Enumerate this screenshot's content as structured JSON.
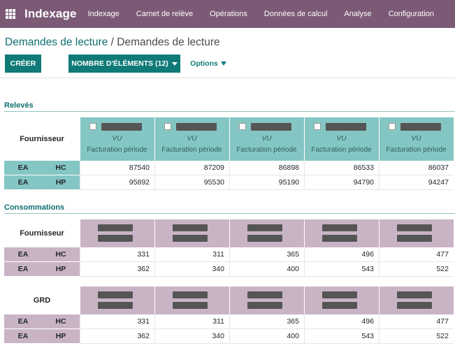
{
  "navbar": {
    "app_title": "Indexage",
    "menu": [
      "Indexage",
      "Carnet de relève",
      "Opérations",
      "Données de calcul",
      "Analyse",
      "Configuration"
    ]
  },
  "breadcrumb": {
    "parent": "Demandes de lecture",
    "separator": " / ",
    "current": "Demandes de lecture"
  },
  "toolbar": {
    "create_label": "CRÉER",
    "count_label": "NOMBRE D'ÉLÉMENTS (12)",
    "options_label": "Options"
  },
  "releves": {
    "title": "Relevés",
    "corner_label": "Fournisseur",
    "columns": [
      {
        "vu": "VU",
        "facturation": "Facturation période"
      },
      {
        "vu": "VU",
        "facturation": "Facturation période"
      },
      {
        "vu": "VU",
        "facturation": "Facturation période"
      },
      {
        "vu": "VU",
        "facturation": "Facturation période"
      },
      {
        "vu": "VU",
        "facturation": "Facturation période"
      }
    ],
    "rows": [
      {
        "a": "EA",
        "b": "HC",
        "values": [
          "87540",
          "87209",
          "86898",
          "86533",
          "86037"
        ]
      },
      {
        "a": "EA",
        "b": "HP",
        "values": [
          "95892",
          "95530",
          "95190",
          "94790",
          "94247"
        ]
      }
    ]
  },
  "consommations": {
    "title": "Consommations",
    "fournisseur": {
      "corner_label": "Fournisseur",
      "rows": [
        {
          "a": "EA",
          "b": "HC",
          "values": [
            "331",
            "311",
            "365",
            "496",
            "477"
          ]
        },
        {
          "a": "EA",
          "b": "HP",
          "values": [
            "362",
            "340",
            "400",
            "543",
            "522"
          ]
        }
      ]
    },
    "grd": {
      "corner_label": "GRD",
      "rows": [
        {
          "a": "EA",
          "b": "HC",
          "values": [
            "331",
            "311",
            "365",
            "496",
            "477"
          ]
        },
        {
          "a": "EA",
          "b": "HP",
          "values": [
            "362",
            "340",
            "400",
            "543",
            "522"
          ]
        }
      ]
    }
  },
  "colors": {
    "navbar": "#7c5a76",
    "primary": "#0f7a78",
    "header_teal": "#84c6c3",
    "header_mauve": "#c9b4c6",
    "redaction": "#555555"
  }
}
